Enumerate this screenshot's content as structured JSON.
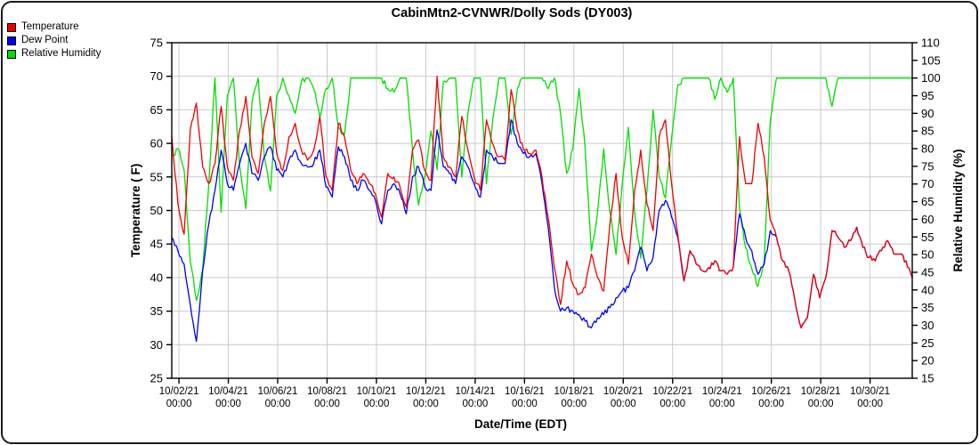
{
  "window": {
    "title": "CabinMtn2-CVNWR/Dolly Sods (DY003)"
  },
  "legend": {
    "items": [
      {
        "label": "Temperature",
        "color": "#ee0000"
      },
      {
        "label": "Dew Point",
        "color": "#0000ee"
      },
      {
        "label": "Relative Humidity",
        "color": "#00dd00"
      }
    ]
  },
  "axes": {
    "x": {
      "label": "Date/Time (EDT)",
      "tick_time_line": "00:00",
      "tick_dates": [
        "10/02/21",
        "10/04/21",
        "10/06/21",
        "10/08/21",
        "10/10/21",
        "10/12/21",
        "10/14/21",
        "10/16/21",
        "10/18/21",
        "10/20/21",
        "10/22/21",
        "10/24/21",
        "10/26/21",
        "10/28/21",
        "10/30/21"
      ],
      "first_tick_offset_hours": 7,
      "tick_interval_hours": 48
    },
    "y_left": {
      "label": "Temperature ( F)",
      "min": 25,
      "max": 75,
      "tick_step": 5
    },
    "y_right": {
      "label": "Relative Humidity (%)",
      "min": 15,
      "max": 110,
      "tick_step": 5
    }
  },
  "colors": {
    "grid": "#c9c9c9",
    "axis": "#000000",
    "background": "#ffffff"
  },
  "chart_data": {
    "type": "line",
    "title": "CabinMtn2-CVNWR/Dolly Sods (DY003)",
    "xlabel": "Date/Time (EDT)",
    "ylabel_left": "Temperature ( F)",
    "ylabel_right": "Relative Humidity (%)",
    "x_start": "10/01/21 17:00 EDT",
    "x_step_hours": 6,
    "x_total_hours": 720,
    "grid": true,
    "legend_position": "top-left",
    "ylim_left": [
      25,
      75
    ],
    "ylim_right": [
      15,
      110
    ],
    "series": [
      {
        "name": "Temperature",
        "axis": "left",
        "color": "#ee0000",
        "values": [
          61,
          51,
          46.5,
          62,
          66,
          56.5,
          54,
          57,
          65.5,
          56.5,
          54.5,
          62,
          67,
          58,
          55.5,
          63,
          67,
          58.5,
          56,
          61,
          63,
          59,
          57.5,
          59,
          64,
          55,
          53,
          63,
          61,
          56,
          54,
          55.5,
          54,
          52.5,
          49,
          55.5,
          55,
          53.5,
          50.5,
          59,
          60.5,
          56,
          54.5,
          70,
          58,
          56.5,
          55,
          64,
          59,
          55,
          53,
          63.5,
          60,
          58,
          57.5,
          68,
          62,
          59,
          58.5,
          59,
          55,
          49,
          41.5,
          36,
          42.5,
          39,
          37.5,
          38.5,
          43.5,
          40,
          38,
          48,
          55.5,
          46,
          42,
          53,
          59,
          51,
          47,
          61,
          63.5,
          54,
          46.5,
          39.5,
          44,
          42,
          41,
          41.5,
          42.5,
          41,
          40.5,
          41.5,
          61,
          54,
          54,
          63,
          58,
          48.5,
          46,
          42.5,
          41,
          36.5,
          32.5,
          34,
          40.5,
          37,
          40,
          47,
          46,
          44.5,
          45.5,
          47.5,
          44.5,
          43,
          42.5,
          44,
          45.5,
          43.5,
          43.5,
          42.5,
          40
        ]
      },
      {
        "name": "Dew Point",
        "axis": "left",
        "color": "#0000ee",
        "values": [
          46,
          44,
          42,
          36,
          30.5,
          41,
          48,
          53,
          59,
          54,
          53,
          57,
          60,
          55.5,
          54.5,
          58,
          59.5,
          56,
          55,
          57.5,
          59,
          57,
          56.5,
          57,
          59,
          53.5,
          52,
          59.5,
          58,
          54.5,
          53,
          54.5,
          53,
          51.5,
          48,
          53,
          54,
          52.5,
          49.5,
          55,
          56.5,
          53.5,
          53,
          62,
          56.5,
          55.5,
          54,
          58,
          56.5,
          54,
          52,
          59,
          58,
          57,
          57,
          63.5,
          60,
          58.5,
          58,
          58.5,
          54,
          47.5,
          38.5,
          35,
          35.5,
          35,
          34.5,
          33.5,
          32.5,
          34,
          34.5,
          35.5,
          37,
          38,
          38.5,
          41,
          44.5,
          41,
          43,
          50,
          51.5,
          49,
          46,
          39.5,
          44,
          42,
          41,
          41.5,
          42.5,
          41,
          40.5,
          41.5,
          49.5,
          46,
          44,
          40.5,
          42,
          47,
          46,
          42.5,
          41,
          36.5,
          32.5,
          34,
          40.5,
          37,
          40,
          47,
          46,
          44.5,
          45.5,
          47.5,
          44.5,
          43,
          42.5,
          44,
          45.5,
          43.5,
          43.5,
          42.5,
          40
        ]
      },
      {
        "name": "Relative Humidity",
        "axis": "right",
        "color": "#00dd00",
        "values": [
          78,
          80,
          74,
          48,
          37,
          46,
          70,
          100,
          62,
          95,
          100,
          75,
          63,
          93,
          100,
          78,
          68,
          95,
          100,
          95,
          90,
          99,
          100,
          97,
          89,
          97,
          100,
          86,
          84,
          100,
          100,
          100,
          100,
          100,
          100,
          97,
          96,
          100,
          100,
          80,
          64,
          72,
          85,
          74,
          99,
          100,
          100,
          72,
          90,
          100,
          100,
          70,
          88,
          100,
          100,
          84,
          97,
          100,
          100,
          100,
          100,
          97,
          100,
          90,
          73,
          80,
          97,
          80,
          51,
          62,
          80,
          62,
          50,
          70,
          86,
          62,
          49,
          68,
          91,
          72,
          66,
          83,
          98,
          100,
          100,
          100,
          100,
          100,
          94,
          100,
          96,
          100,
          63,
          52,
          46,
          41,
          48,
          88,
          100,
          100,
          100,
          100,
          100,
          100,
          100,
          100,
          100,
          92,
          100,
          100,
          100,
          100,
          100,
          100,
          100,
          100,
          100,
          100,
          100,
          100,
          100
        ]
      }
    ]
  }
}
